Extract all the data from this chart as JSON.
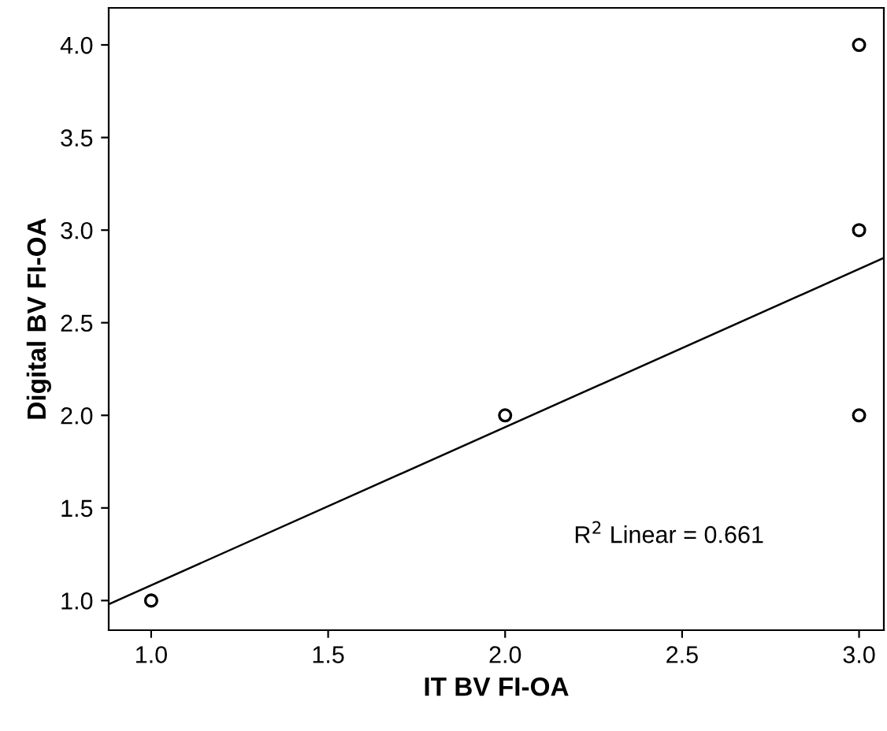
{
  "chart_data": {
    "type": "scatter",
    "xlabel": "IT BV FI-OA",
    "ylabel": "Digital BV FI-OA",
    "series": [
      {
        "color": "#000000",
        "marker": "circle",
        "x": [
          1.0,
          2.0,
          3.0,
          3.0,
          3.0
        ],
        "values": [
          1.0,
          2.0,
          2.0,
          3.0,
          4.0
        ]
      },
      {
        "type": "line",
        "marker": "none",
        "color": "#000000",
        "x": [
          0.88,
          3.07
        ],
        "values": [
          0.98,
          2.85
        ]
      }
    ],
    "xlim": [
      0.88,
      3.07
    ],
    "ylim": [
      0.84,
      4.2
    ],
    "xticks": [
      {
        "value": 1.0,
        "label": "1.0"
      },
      {
        "value": 1.5,
        "label": "1.5"
      },
      {
        "value": 2.0,
        "label": "2.0"
      },
      {
        "value": 2.5,
        "label": "2.5"
      },
      {
        "value": 3.0,
        "label": "3.0"
      }
    ],
    "yticks": [
      {
        "value": 1.0,
        "label": "1.0"
      },
      {
        "value": 1.5,
        "label": "1.5"
      },
      {
        "value": 2.0,
        "label": "2.0"
      },
      {
        "value": 2.5,
        "label": "2.5"
      },
      {
        "value": 3.0,
        "label": "3.0"
      },
      {
        "value": 3.5,
        "label": "3.5"
      },
      {
        "value": 4.0,
        "label": "4.0"
      }
    ],
    "annotations": [
      "R$^{2}$ Linear = 0.661"
    ],
    "grid": false,
    "legend": false
  }
}
